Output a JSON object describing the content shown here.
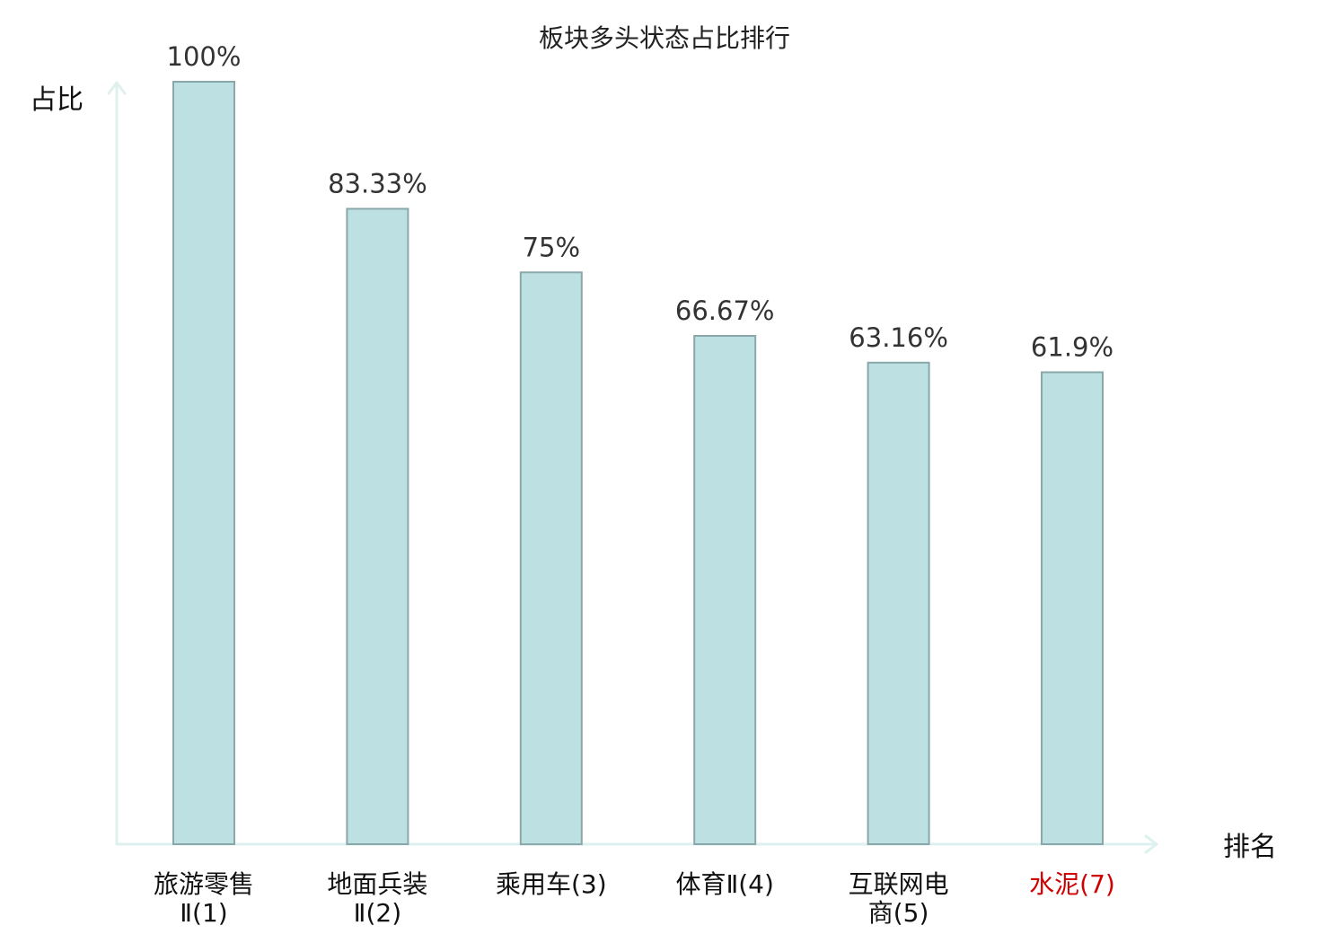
{
  "chart_data": {
    "type": "bar",
    "title": "板块多头状态占比排行",
    "ylabel": "占比",
    "xlabel": "排名",
    "ylim": [
      0,
      100
    ],
    "grid": false,
    "legend": "none",
    "categories": [
      {
        "lines": [
          "旅游零售",
          "Ⅱ(1)"
        ],
        "name": "旅游零售Ⅱ(1)",
        "highlight": false
      },
      {
        "lines": [
          "地面兵装",
          "Ⅱ(2)"
        ],
        "name": "地面兵装Ⅱ(2)",
        "highlight": false
      },
      {
        "lines": [
          "乘用车(3)"
        ],
        "name": "乘用车(3)",
        "highlight": false
      },
      {
        "lines": [
          "体育Ⅱ(4)"
        ],
        "name": "体育Ⅱ(4)",
        "highlight": false
      },
      {
        "lines": [
          "互联网电",
          "商(5)"
        ],
        "name": "互联网电商(5)",
        "highlight": false
      },
      {
        "lines": [
          "水泥(7)"
        ],
        "name": "水泥(7)",
        "highlight": true
      }
    ],
    "values": [
      100,
      83.33,
      75,
      66.67,
      63.16,
      61.9
    ],
    "data_labels": [
      "100%",
      "83.33%",
      "75%",
      "66.67%",
      "63.16%",
      "61.9%"
    ],
    "colors": {
      "bar_fill": "#bde0e2",
      "bar_stroke": "#8aa8aa",
      "axis": "#dff1ee",
      "highlight": "#d00000"
    }
  }
}
